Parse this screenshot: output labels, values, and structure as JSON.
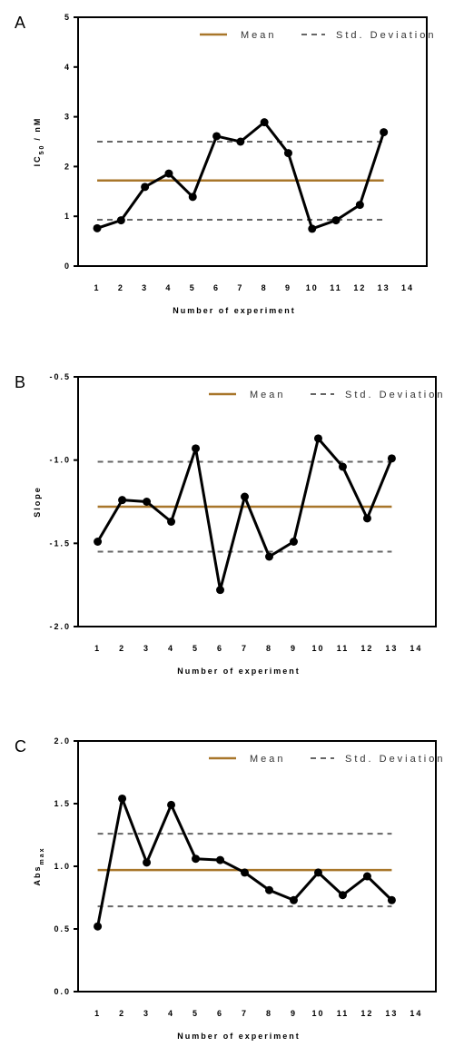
{
  "colors": {
    "mean": "#a8762a",
    "std": "#666666",
    "series": "#000000"
  },
  "chart_data": [
    {
      "type": "line",
      "panel_label": "A",
      "xlabel": "Number of experiment",
      "ylabel_main": "IC",
      "ylabel_sub": "50",
      "ylabel_tail": "/ nM",
      "legend": {
        "mean": "Mean",
        "std": "Std. Deviation",
        "placement": "top-right"
      },
      "ylim": [
        0,
        5
      ],
      "yticks": [
        0,
        1,
        2,
        3,
        4,
        5
      ],
      "ytick_labels": [
        "0",
        "1",
        "2",
        "3",
        "4",
        "5"
      ],
      "xticks": [
        1,
        2,
        3,
        4,
        5,
        6,
        7,
        8,
        9,
        10,
        11,
        12,
        13,
        14
      ],
      "xtick_labels": [
        "1",
        "2",
        "3",
        "4",
        "5",
        "6",
        "7",
        "8",
        "9",
        "10",
        "11",
        "12",
        "13",
        "14"
      ],
      "x": [
        1,
        2,
        3,
        4,
        5,
        6,
        7,
        8,
        9,
        10,
        11,
        12,
        13
      ],
      "values": [
        0.76,
        0.92,
        1.59,
        1.86,
        1.39,
        2.61,
        2.5,
        2.89,
        2.27,
        0.75,
        0.92,
        1.23,
        2.69
      ],
      "mean": 1.72,
      "std_upper": 2.5,
      "std_lower": 0.93
    },
    {
      "type": "line",
      "panel_label": "B",
      "xlabel": "Number of experiment",
      "ylabel_main": "Slope",
      "ylabel_sub": "",
      "ylabel_tail": "",
      "legend": {
        "mean": "Mean",
        "std": "Std. Deviation",
        "placement": "top-right"
      },
      "ylim": [
        -2.0,
        -0.5
      ],
      "yticks": [
        -2.0,
        -1.5,
        -1.0,
        -0.5
      ],
      "ytick_labels": [
        "-2.0",
        "-1.5",
        "-1.0",
        "-0.5"
      ],
      "xticks": [
        1,
        2,
        3,
        4,
        5,
        6,
        7,
        8,
        9,
        10,
        11,
        12,
        13,
        14
      ],
      "xtick_labels": [
        "1",
        "2",
        "3",
        "4",
        "5",
        "6",
        "7",
        "8",
        "9",
        "10",
        "11",
        "12",
        "13",
        "14"
      ],
      "x": [
        1,
        2,
        3,
        4,
        5,
        6,
        7,
        8,
        9,
        10,
        11,
        12,
        13
      ],
      "values": [
        -1.49,
        -1.24,
        -1.25,
        -1.37,
        -0.93,
        -1.78,
        -1.22,
        -1.58,
        -1.49,
        -0.87,
        -1.04,
        -1.35,
        -0.99
      ],
      "mean": -1.28,
      "std_upper": -1.01,
      "std_lower": -1.55
    },
    {
      "type": "line",
      "panel_label": "C",
      "xlabel": "Number of experiment",
      "ylabel_main": "Abs",
      "ylabel_sub": "max",
      "ylabel_tail": "",
      "legend": {
        "mean": "Mean",
        "std": "Std. Deviation",
        "placement": "top-right"
      },
      "ylim": [
        0.0,
        2.0
      ],
      "yticks": [
        0.0,
        0.5,
        1.0,
        1.5,
        2.0
      ],
      "ytick_labels": [
        "0.0",
        "0.5",
        "1.0",
        "1.5",
        "2.0"
      ],
      "xticks": [
        1,
        2,
        3,
        4,
        5,
        6,
        7,
        8,
        9,
        10,
        11,
        12,
        13,
        14
      ],
      "xtick_labels": [
        "1",
        "2",
        "3",
        "4",
        "5",
        "6",
        "7",
        "8",
        "9",
        "10",
        "11",
        "12",
        "13",
        "14"
      ],
      "x": [
        1,
        2,
        3,
        4,
        5,
        6,
        7,
        8,
        9,
        10,
        11,
        12,
        13
      ],
      "values": [
        0.52,
        1.54,
        1.03,
        1.49,
        1.06,
        1.05,
        0.95,
        0.81,
        0.73,
        0.95,
        0.77,
        0.92,
        0.73
      ],
      "mean": 0.97,
      "std_upper": 1.26,
      "std_lower": 0.68
    }
  ]
}
